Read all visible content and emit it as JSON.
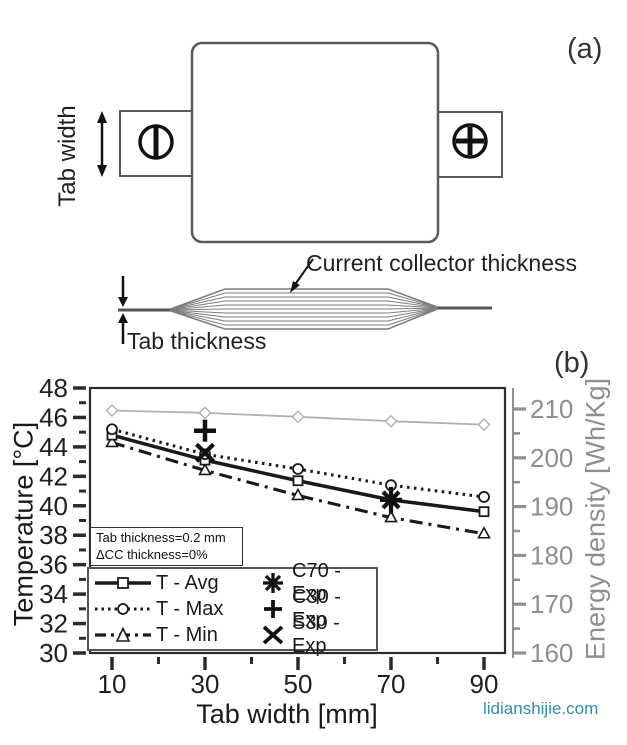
{
  "panel_a": {
    "label": "(a)",
    "tab_width_label": "Tab width",
    "cc_thickness_label": "Current collector thickness",
    "tab_thickness_label": "Tab thickness",
    "icons": {
      "negative_terminal": "circle-with-vertical-bar",
      "positive_terminal": "circle-with-cross"
    }
  },
  "panel_b": {
    "label": "(b)",
    "watermark": "lidianshijie.com",
    "watermark_color": "#2e8fae"
  },
  "chart_data": {
    "type": "line",
    "x": [
      10,
      30,
      50,
      70,
      90
    ],
    "xlabel": "Tab width [mm]",
    "ylabel_left": "Temperature [°C]",
    "ylabel_right": "Energy density [Wh/Kg]",
    "xlim": [
      5.5,
      94.5
    ],
    "ylim_left": [
      30,
      48
    ],
    "ylim_right": [
      160,
      214.3
    ],
    "xticks": [
      10,
      30,
      50,
      70,
      90
    ],
    "xticks_minor": [
      20,
      40,
      60,
      80
    ],
    "yticks_left": [
      48,
      46,
      44,
      42,
      40,
      38,
      36,
      34,
      32,
      30
    ],
    "yticks_left_minor": [
      47,
      45,
      43,
      41,
      39,
      37,
      35,
      33,
      31
    ],
    "yticks_right": [
      210,
      200,
      190,
      180,
      170,
      160
    ],
    "yticks_right_minor": [
      205,
      195,
      185,
      175,
      165
    ],
    "grid": false,
    "legend_position": "lower-left",
    "colors": {
      "temperature": "#1a1a1a",
      "energy": "#b0b0b0",
      "right_axis": "#8f8f8f"
    },
    "series": [
      {
        "name": "T - Avg",
        "axis": "left",
        "line": "solid",
        "marker": "square",
        "color": "#1a1a1a",
        "values": [
          44.8,
          43.1,
          41.7,
          40.4,
          39.6
        ]
      },
      {
        "name": "T - Max",
        "axis": "left",
        "line": "dotted",
        "marker": "circle",
        "color": "#1a1a1a",
        "values": [
          45.2,
          43.5,
          42.5,
          41.4,
          40.6
        ]
      },
      {
        "name": "T - Min",
        "axis": "left",
        "line": "dashdot",
        "marker": "triangle",
        "color": "#1a1a1a",
        "values": [
          44.3,
          42.4,
          40.7,
          39.2,
          38.1
        ]
      },
      {
        "name": "Energy density",
        "axis": "right",
        "line": "solid",
        "marker": "diamond",
        "color": "#b0b0b0",
        "values": [
          209.7,
          209.2,
          208.4,
          207.5,
          206.8
        ]
      }
    ],
    "exp_points": [
      {
        "name": "C70 - Exp",
        "marker": "asterisk",
        "x": 70,
        "y": 40.4
      },
      {
        "name": "C30 - Exp",
        "marker": "plus",
        "x": 30,
        "y": 45.1
      },
      {
        "name": "S30 - Exp",
        "marker": "xmark",
        "x": 30,
        "y": 43.6
      }
    ],
    "annotation": {
      "line1": "Tab thickness=0.2 mm",
      "line2": "ΔCC thickness=0%"
    }
  }
}
